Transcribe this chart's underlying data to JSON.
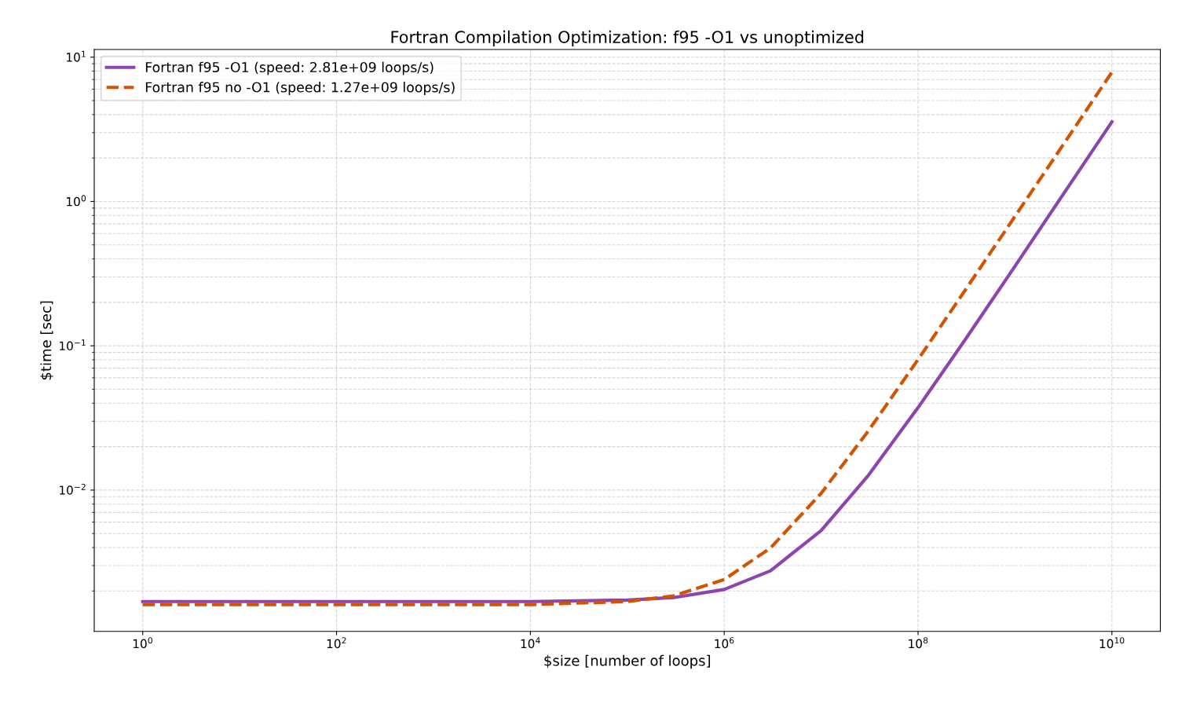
{
  "chart_data": {
    "type": "line",
    "title": "Fortran Compilation Optimization: f95 -O1 vs unoptimized",
    "xlabel": "$size [number of loops]",
    "ylabel": "$time [sec]",
    "log": "xy",
    "grid": true,
    "legend": "top left",
    "x": [
      1,
      10,
      100,
      1000,
      10000,
      100000,
      300000,
      1000000,
      3000000,
      10000000,
      30000000,
      100000000,
      300000000,
      1000000000,
      3000000000,
      10000000000
    ],
    "xlim": [
      0.316,
      31600000000
    ],
    "xticks": [
      {
        "value": 1,
        "label": "10$^{0}$"
      },
      {
        "value": 100,
        "label": "10$^{2}$"
      },
      {
        "value": 10000,
        "label": "10$^{4}$"
      },
      {
        "value": 1000000,
        "label": "10$^{6}$"
      },
      {
        "value": 100000000,
        "label": "10$^{8}$"
      },
      {
        "value": 10000000000,
        "label": "10$^{10}$"
      }
    ],
    "ylim": [
      0.00105,
      11.3
    ],
    "yticks": [
      {
        "value": 0.01,
        "label": "10$^{−2}$"
      },
      {
        "value": 0.1,
        "label": "10$^{−1}$"
      },
      {
        "value": 1,
        "label": "10$^{0}$"
      },
      {
        "value": 10,
        "label": "10$^{1}$"
      }
    ],
    "series": [
      {
        "name": "Fortran f95 -O1 (speed: 2.81e+09 loops/s)",
        "color": "#8e44ad",
        "line_style": "solid",
        "values": [
          0.00169,
          0.00169,
          0.00169,
          0.00169,
          0.00169,
          0.00173,
          0.0018,
          0.00205,
          0.00276,
          0.00525,
          0.0124,
          0.0373,
          0.108,
          0.356,
          1.07,
          3.56
        ]
      },
      {
        "name": "Fortran f95 no -O1 (speed: 1.27e+09 loops/s)",
        "color": "#d35400",
        "line_style": "dashed",
        "values": [
          0.00161,
          0.00161,
          0.00161,
          0.00161,
          0.00161,
          0.00169,
          0.00185,
          0.0024,
          0.00397,
          0.0095,
          0.0252,
          0.0803,
          0.238,
          0.789,
          2.36,
          7.87
        ]
      }
    ]
  }
}
